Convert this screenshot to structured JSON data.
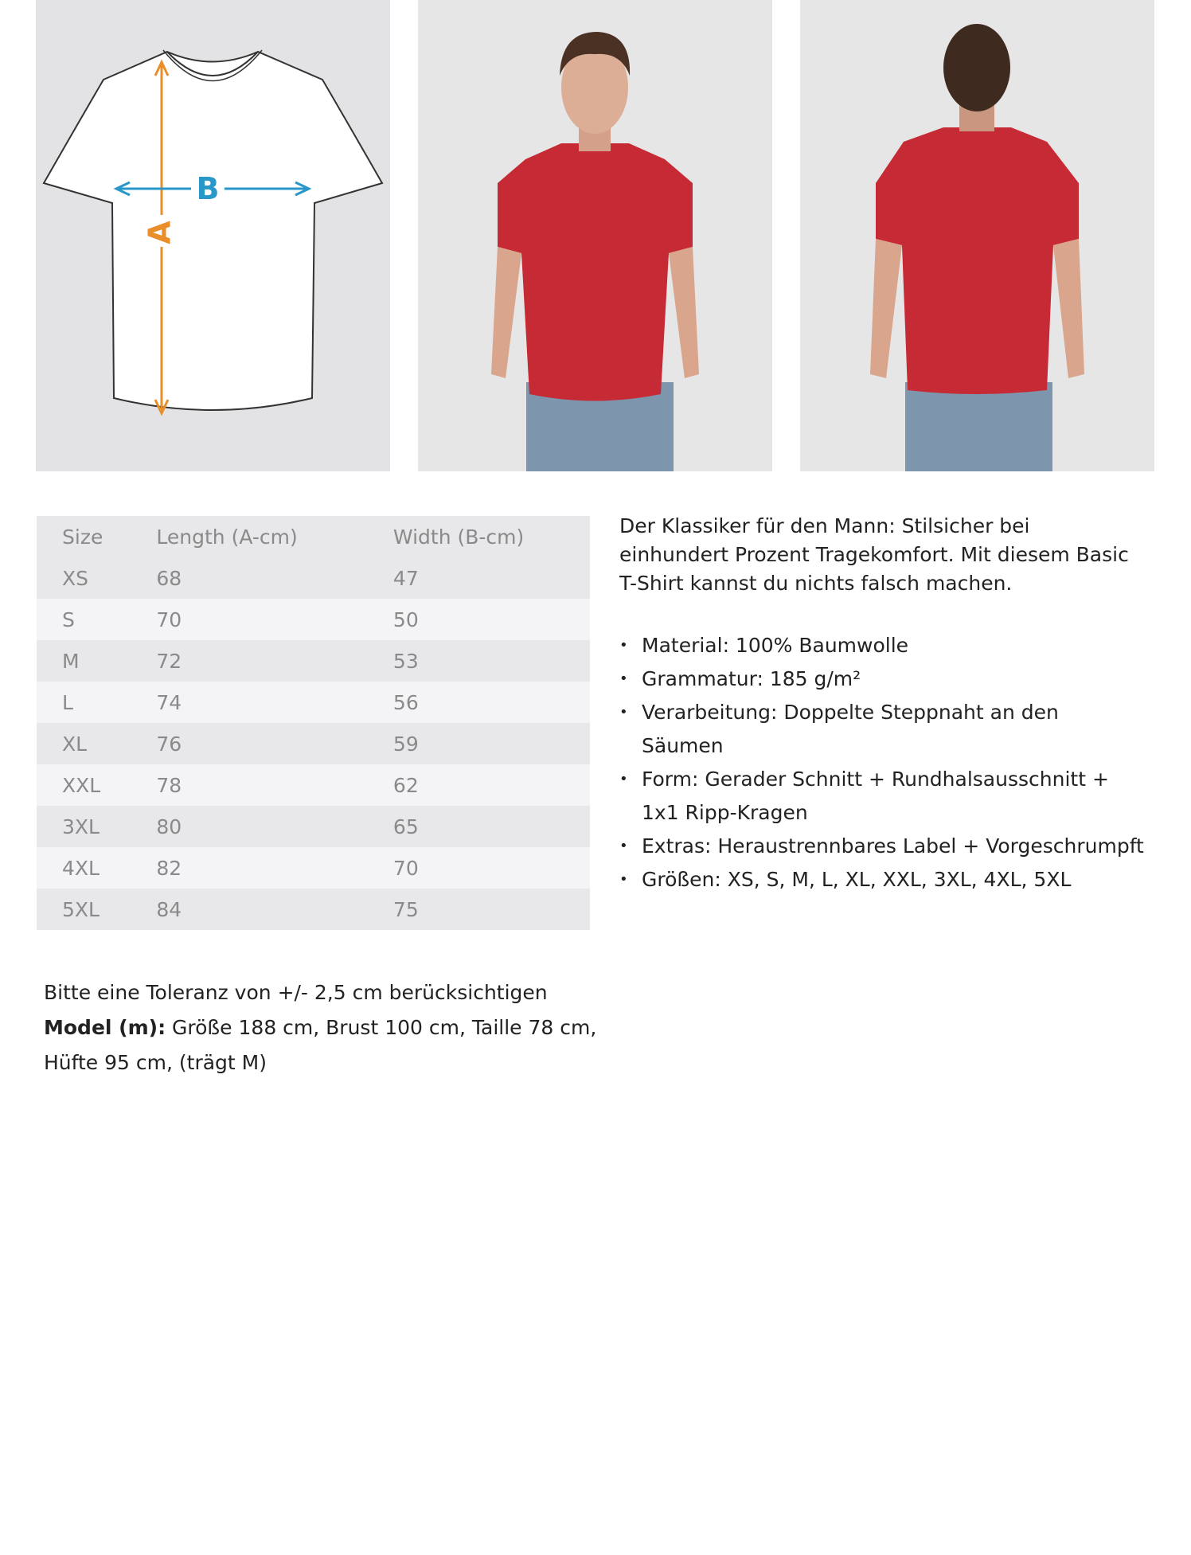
{
  "diagram": {
    "label_a": "A",
    "label_b": "B"
  },
  "size_table": {
    "headers": [
      "Size",
      "Length (A-cm)",
      "Width (B-cm)"
    ],
    "rows": [
      [
        "XS",
        "68",
        "47"
      ],
      [
        "S",
        "70",
        "50"
      ],
      [
        "M",
        "72",
        "53"
      ],
      [
        "L",
        "74",
        "56"
      ],
      [
        "XL",
        "76",
        "59"
      ],
      [
        "XXL",
        "78",
        "62"
      ],
      [
        "3XL",
        "80",
        "65"
      ],
      [
        "4XL",
        "82",
        "70"
      ],
      [
        "5XL",
        "84",
        "75"
      ]
    ]
  },
  "description": "Der Klassiker für den Mann: Stilsicher bei einhundert Prozent Tragekomfort. Mit diesem Basic T-Shirt kannst du nichts falsch machen.",
  "features": [
    "Material: 100% Baumwolle",
    "Grammatur: 185 g/m²",
    "Verarbeitung: Doppelte Steppnaht an den Säumen",
    "Form: Gerader Schnitt + Rundhalsausschnitt + 1x1 Ripp-Kragen",
    "Extras: Heraustrennbares Label + Vorgeschrumpft",
    "Größen: XS, S, M, L, XL, XXL, 3XL, 4XL, 5XL"
  ],
  "notes": {
    "tolerance": "Bitte eine Toleranz von +/- 2,5 cm berücksichtigen",
    "model_label": "Model (m):",
    "model_text": "Größe 188 cm, Brust 100 cm, Taille 78 cm, Hüfte 95 cm, (trägt M)"
  }
}
